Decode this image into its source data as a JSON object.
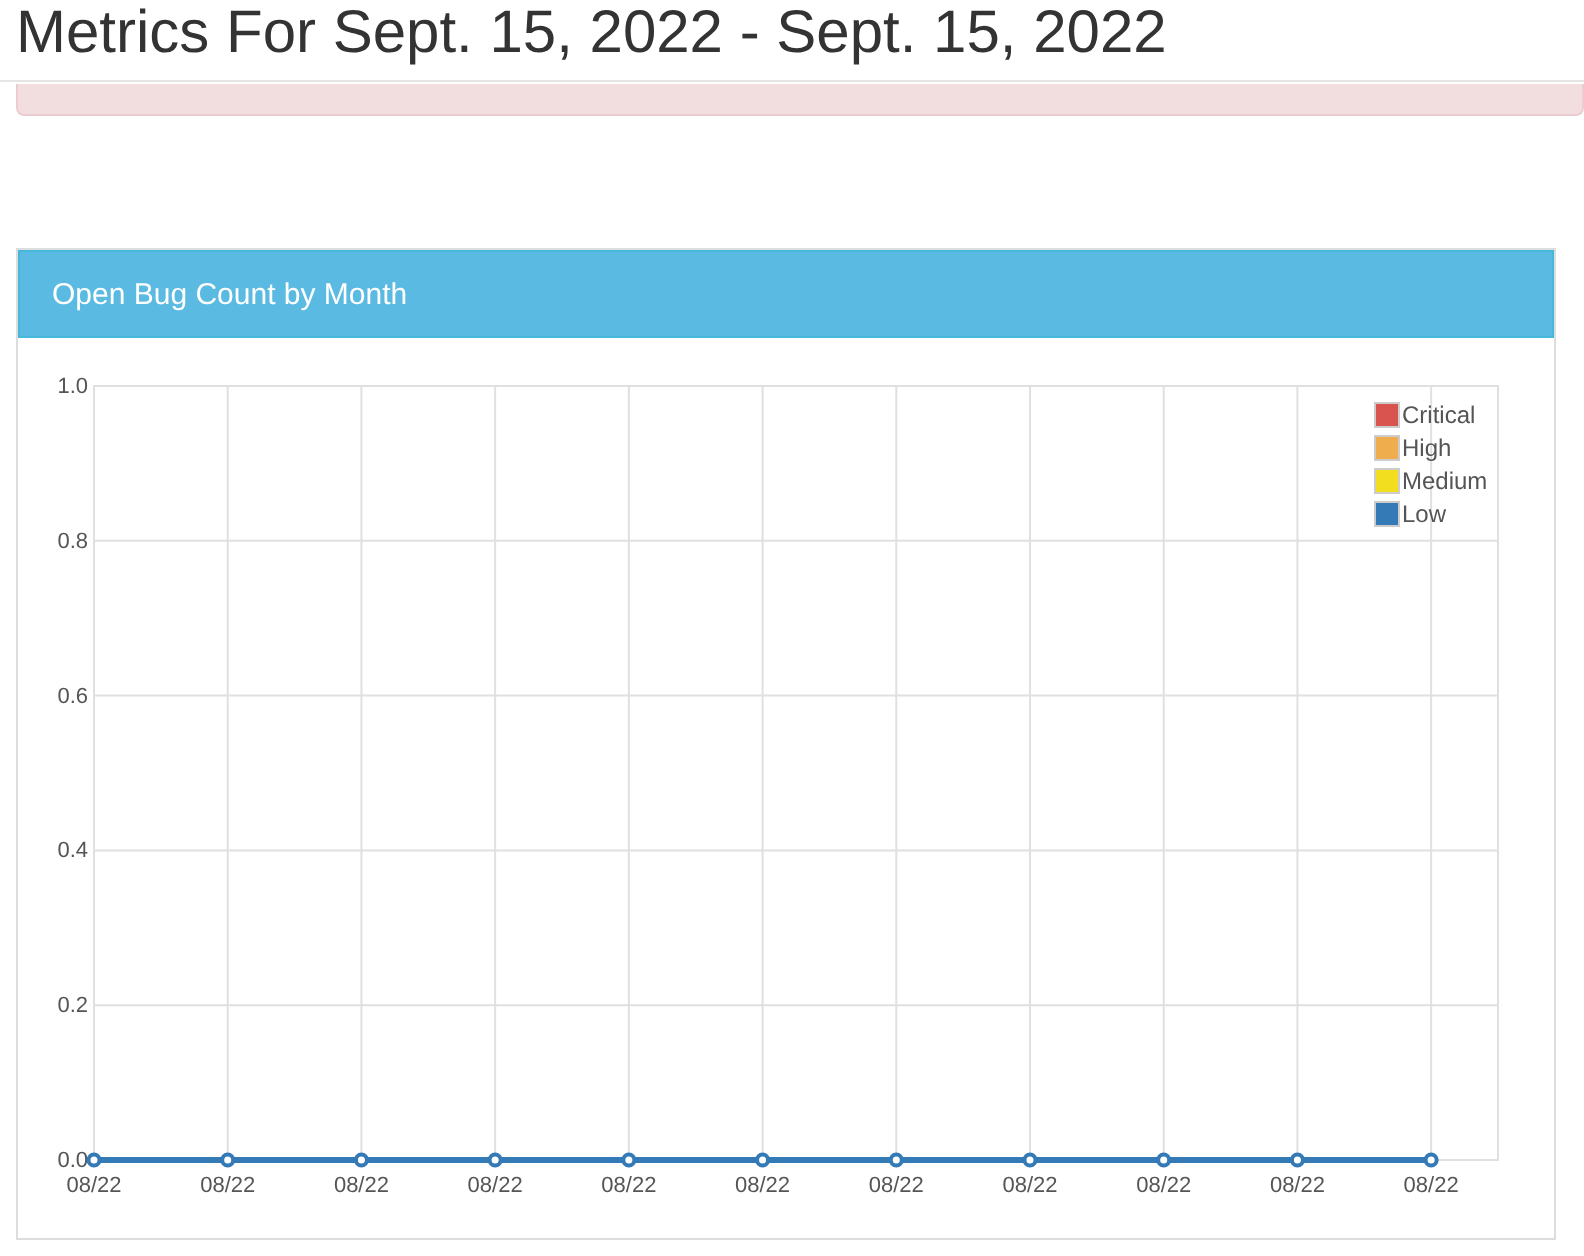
{
  "chart_data": {
    "type": "line",
    "title": "Open Bug Count by Month",
    "annotations": [
      "Metrics For Sept. 15, 2022 - Sept. 15, 2022"
    ],
    "categories": [
      "08/22",
      "08/22",
      "08/22",
      "08/22",
      "08/22",
      "08/22",
      "08/22",
      "08/22",
      "08/22",
      "08/22",
      "08/22"
    ],
    "ylim": [
      0,
      1
    ],
    "yticks": [
      {
        "value": 0,
        "label": "0.0"
      },
      {
        "value": 0.2,
        "label": "0.2"
      },
      {
        "value": 0.4,
        "label": "0.4"
      },
      {
        "value": 0.6,
        "label": "0.6"
      },
      {
        "value": 0.8,
        "label": "0.8"
      },
      {
        "value": 1,
        "label": "1.0"
      }
    ],
    "series": [
      {
        "name": "Critical",
        "color": "#d9534f",
        "values": [
          null,
          null,
          null,
          null,
          null,
          null,
          null,
          null,
          null,
          null,
          null
        ]
      },
      {
        "name": "High",
        "color": "#f0ad4e",
        "values": [
          null,
          null,
          null,
          null,
          null,
          null,
          null,
          null,
          null,
          null,
          null
        ]
      },
      {
        "name": "Medium",
        "color": "#f2dd1e",
        "values": [
          null,
          null,
          null,
          null,
          null,
          null,
          null,
          null,
          null,
          null,
          null
        ]
      },
      {
        "name": "Low",
        "color": "#337ab7",
        "values": [
          0,
          0,
          0,
          0,
          0,
          0,
          0,
          0,
          0,
          0,
          0
        ]
      }
    ],
    "grid": true,
    "legend": "top right",
    "marker": "circle",
    "line_style": "solid"
  }
}
